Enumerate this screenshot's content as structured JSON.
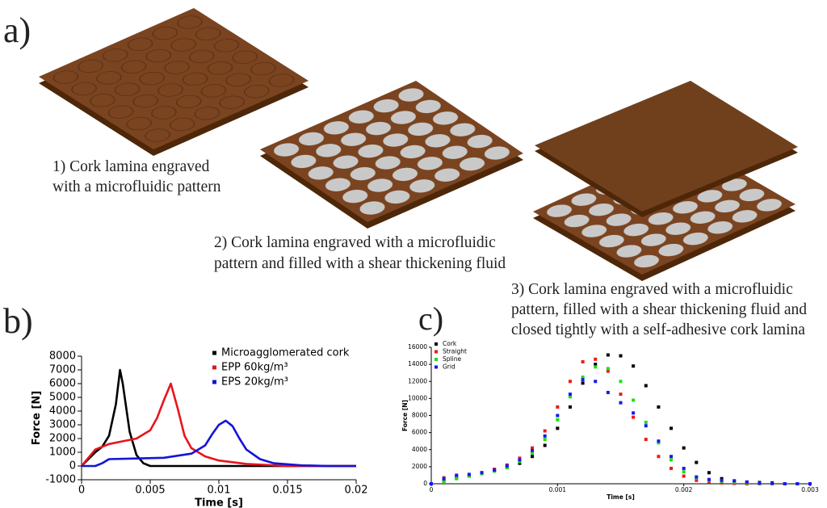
{
  "panels": {
    "a": "a)",
    "b": "b)",
    "c": "c)"
  },
  "captions": [
    [
      "1) Cork lamina engraved",
      "with a microfluidic pattern"
    ],
    [
      "2) Cork lamina engraved with a microfluidic",
      "pattern and filled with a shear thickening fluid"
    ],
    [
      "3) Cork lamina engraved with a microfluidic",
      "pattern, filled with a shear thickening fluid and",
      "closed tightly with a self-adhesive cork lamina"
    ]
  ],
  "chart_data": [
    {
      "type": "line",
      "xlabel": "Time [s]",
      "ylabel": "Force [N]",
      "xlim": [
        0,
        0.02
      ],
      "xticks": [
        0,
        0.005,
        0.01,
        0.015,
        0.02
      ],
      "ylim": [
        -1000,
        8000
      ],
      "yticks": [
        -1000,
        0,
        1000,
        2000,
        3000,
        4000,
        5000,
        6000,
        7000,
        8000
      ],
      "legend": "upper right",
      "series": [
        {
          "name": "Microagglomerated cork",
          "color": "#000000",
          "x": [
            0,
            0.0005,
            0.001,
            0.0015,
            0.002,
            0.0025,
            0.0028,
            0.003,
            0.0035,
            0.004,
            0.0045,
            0.005,
            0.006,
            0.008,
            0.01,
            0.015,
            0.02
          ],
          "values": [
            0,
            500,
            1000,
            1400,
            2200,
            4500,
            7000,
            6000,
            2500,
            800,
            200,
            0,
            0,
            0,
            0,
            0,
            0
          ]
        },
        {
          "name": "EPP 60kg/m³",
          "color": "#e8141b",
          "x": [
            0,
            0.001,
            0.002,
            0.003,
            0.004,
            0.005,
            0.0055,
            0.006,
            0.0065,
            0.007,
            0.0075,
            0.008,
            0.009,
            0.01,
            0.012,
            0.015,
            0.02
          ],
          "values": [
            0,
            1200,
            1600,
            1800,
            2000,
            2600,
            3500,
            4800,
            6000,
            4200,
            2200,
            1300,
            700,
            400,
            150,
            0,
            0
          ]
        },
        {
          "name": "EPS 20kg/m³",
          "color": "#1414d8",
          "x": [
            0,
            0.001,
            0.0015,
            0.002,
            0.004,
            0.006,
            0.008,
            0.009,
            0.0095,
            0.01,
            0.0105,
            0.011,
            0.0115,
            0.012,
            0.013,
            0.014,
            0.016,
            0.018,
            0.02
          ],
          "values": [
            0,
            0,
            200,
            500,
            550,
            600,
            900,
            1500,
            2300,
            3000,
            3300,
            2900,
            2000,
            1200,
            500,
            200,
            50,
            0,
            0
          ]
        }
      ]
    },
    {
      "type": "scatter",
      "xlabel": "Time [s]",
      "ylabel": "Force [N]",
      "xlim": [
        0,
        0.003
      ],
      "xticks": [
        0,
        0.001,
        0.002,
        0.003
      ],
      "ylim": [
        0,
        16000
      ],
      "yticks": [
        0,
        2000,
        4000,
        6000,
        8000,
        10000,
        12000,
        14000,
        16000
      ],
      "legend": "upper left",
      "x": [
        0,
        0.0001,
        0.0002,
        0.0003,
        0.0004,
        0.0005,
        0.0006,
        0.0007,
        0.0008,
        0.0009,
        0.001,
        0.0011,
        0.0012,
        0.0013,
        0.0014,
        0.0015,
        0.0016,
        0.0017,
        0.0018,
        0.0019,
        0.002,
        0.0021,
        0.0022,
        0.0023,
        0.0024,
        0.0025,
        0.0026,
        0.0027,
        0.0028,
        0.0029,
        0.003
      ],
      "series": [
        {
          "name": "Cork",
          "color": "#000000",
          "values": [
            0,
            300,
            700,
            900,
            1200,
            1500,
            1900,
            2400,
            3200,
            4500,
            6500,
            9000,
            11800,
            14000,
            15100,
            15000,
            13800,
            11500,
            9000,
            6500,
            4200,
            2500,
            1300,
            600,
            300,
            200,
            150,
            100,
            0,
            0,
            0
          ]
        },
        {
          "name": "Straight",
          "color": "#f01818",
          "values": [
            0,
            700,
            900,
            1000,
            1300,
            1700,
            2200,
            3000,
            4200,
            6200,
            9000,
            12000,
            14300,
            14600,
            13200,
            10500,
            7800,
            5200,
            3200,
            1800,
            900,
            400,
            200,
            100,
            50,
            0,
            0,
            0,
            0,
            0,
            0
          ]
        },
        {
          "name": "Spline",
          "color": "#18e018",
          "values": [
            0,
            200,
            600,
            900,
            1200,
            1500,
            1900,
            2600,
            3600,
            5200,
            7500,
            10200,
            12500,
            13700,
            13500,
            12000,
            9800,
            7200,
            4800,
            2800,
            1400,
            700,
            400,
            300,
            200,
            100,
            50,
            0,
            0,
            0,
            0
          ]
        },
        {
          "name": "Grid",
          "color": "#1818f0",
          "values": [
            0,
            600,
            1000,
            1100,
            1300,
            1600,
            2100,
            2800,
            3900,
            5600,
            8000,
            10500,
            12200,
            12000,
            10700,
            9500,
            8300,
            6800,
            5000,
            3200,
            1800,
            800,
            500,
            400,
            350,
            200,
            100,
            50,
            0,
            0,
            0
          ]
        }
      ]
    }
  ]
}
